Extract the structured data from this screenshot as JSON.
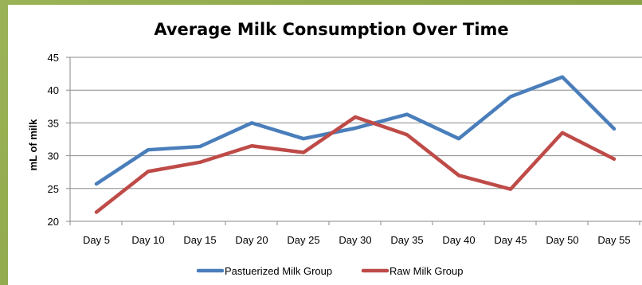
{
  "chart_data": {
    "type": "line",
    "title": "Average Milk Consumption Over Time",
    "xlabel": "",
    "ylabel": "mL of milk",
    "categories": [
      "Day 5",
      "Day 10",
      "Day 15",
      "Day 20",
      "Day 25",
      "Day 30",
      "Day 35",
      "Day 40",
      "Day 45",
      "Day 50",
      "Day 55"
    ],
    "ylim": [
      20,
      45
    ],
    "yticks": [
      "20",
      "25",
      "30",
      "35",
      "40",
      "45"
    ],
    "grid": true,
    "legend_position": "bottom",
    "series": [
      {
        "name": "Pastuerized Milk Group",
        "color": "#4a7ebb",
        "values": [
          25.7,
          30.9,
          31.4,
          35.0,
          32.6,
          34.2,
          36.3,
          32.6,
          39.0,
          42.0,
          34.1
        ]
      },
      {
        "name": "Raw Milk Group",
        "color": "#be4b48",
        "values": [
          21.4,
          27.6,
          29.0,
          31.5,
          30.5,
          35.9,
          33.2,
          27.0,
          24.9,
          33.5,
          29.5
        ]
      }
    ]
  }
}
